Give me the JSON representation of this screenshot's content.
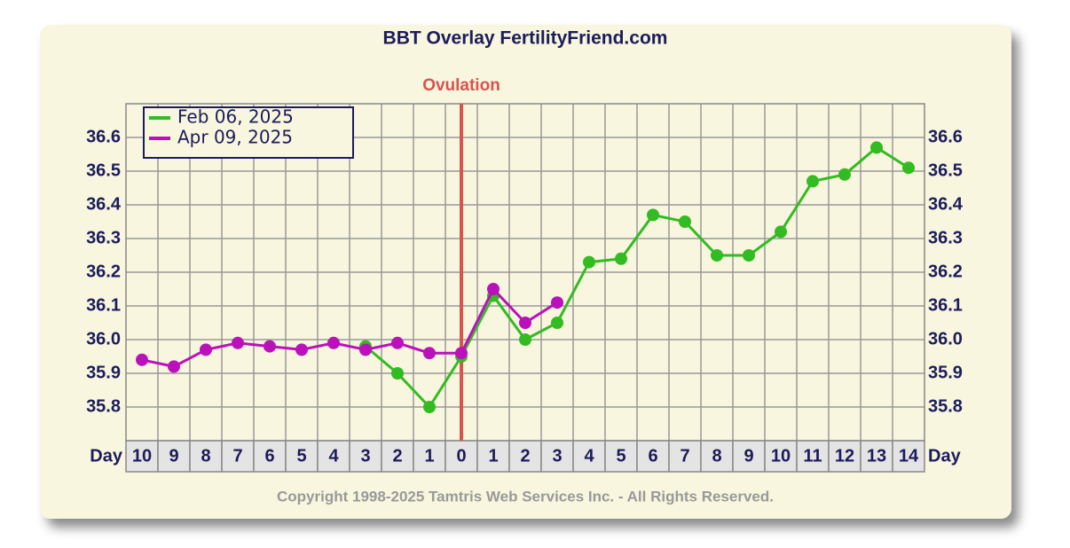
{
  "chart_data": {
    "type": "line",
    "title": "BBT Overlay FertilityFriend.com",
    "ovulation": {
      "label": "Ovulation",
      "category_index": 10,
      "color": "#d9534f"
    },
    "x_label": "Day",
    "categories": [
      "10",
      "9",
      "8",
      "7",
      "6",
      "5",
      "4",
      "3",
      "2",
      "1",
      "0",
      "1",
      "2",
      "3",
      "4",
      "5",
      "6",
      "7",
      "8",
      "9",
      "10",
      "11",
      "12",
      "13",
      "14"
    ],
    "series": [
      {
        "name": "Feb 06, 2025",
        "color": "#33bb22",
        "values": [
          null,
          null,
          null,
          null,
          null,
          null,
          null,
          35.98,
          35.9,
          35.8,
          35.95,
          36.13,
          36.0,
          36.05,
          36.23,
          36.24,
          36.37,
          36.35,
          36.25,
          36.25,
          36.32,
          36.47,
          36.49,
          36.57,
          36.51
        ]
      },
      {
        "name": "Apr 09, 2025",
        "color": "#bb11bb",
        "values": [
          35.94,
          35.92,
          35.97,
          35.99,
          35.98,
          35.97,
          35.99,
          35.97,
          35.99,
          35.96,
          35.96,
          36.15,
          36.05,
          36.11,
          null,
          null,
          null,
          null,
          null,
          null,
          null,
          null,
          null,
          null,
          null
        ]
      }
    ],
    "ylim": [
      35.7,
      36.7
    ],
    "yticks": [
      35.8,
      35.9,
      {
        "value": 36,
        "label": "36.0"
      },
      36.1,
      36.2,
      36.3,
      36.4,
      36.5,
      36.6
    ],
    "grid": true,
    "legend": "top-left",
    "footer": "Copyright 1998-2025 Tamtris Web Services Inc. - All Rights Reserved."
  }
}
